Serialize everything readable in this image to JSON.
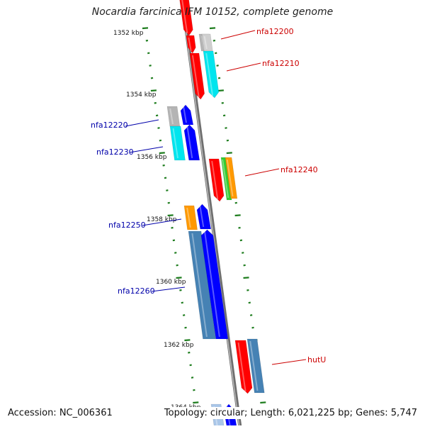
{
  "title": "Nocardia farcinica IFM 10152, complete genome",
  "footer": {
    "accession": "Accession: NC_006361",
    "summary": "Topology: circular; Length: 6,021,225 bp; Genes: 5,747"
  },
  "ticks": [
    "1352 kbp",
    "1354 kbp",
    "1356 kbp",
    "1358 kbp",
    "1360 kbp",
    "1362 kbp",
    "1364 kbp"
  ],
  "gene_labels": {
    "forward": [
      "nfa12200",
      "nfa12210",
      "nfa12240",
      "hutU"
    ],
    "reverse": [
      "nfa12220",
      "nfa12230",
      "nfa12250",
      "nfa12260"
    ]
  },
  "colors": {
    "backbone": "#888888",
    "ticks": "#1e7d1e",
    "forward_label": "#cc0000",
    "reverse_label": "#0000aa",
    "red": "#ff0000",
    "gray": "#b4b4b4",
    "cyan": "#00e5ee",
    "blue": "#0000ff",
    "orange": "#ff9900",
    "green": "#33cc33",
    "steelblue": "#4682b4"
  }
}
